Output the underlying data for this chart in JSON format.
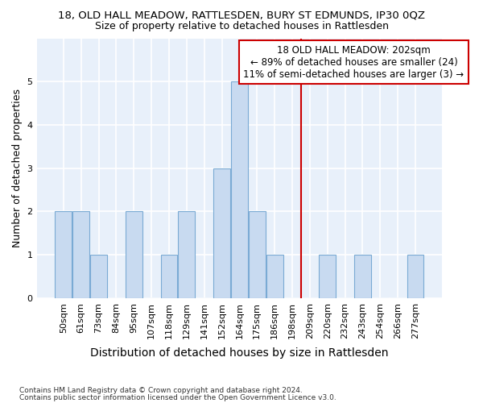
{
  "title": "18, OLD HALL MEADOW, RATTLESDEN, BURY ST EDMUNDS, IP30 0QZ",
  "subtitle": "Size of property relative to detached houses in Rattlesden",
  "xlabel": "Distribution of detached houses by size in Rattlesden",
  "ylabel": "Number of detached properties",
  "categories": [
    "50sqm",
    "61sqm",
    "73sqm",
    "84sqm",
    "95sqm",
    "107sqm",
    "118sqm",
    "129sqm",
    "141sqm",
    "152sqm",
    "164sqm",
    "175sqm",
    "186sqm",
    "198sqm",
    "209sqm",
    "220sqm",
    "232sqm",
    "243sqm",
    "254sqm",
    "266sqm",
    "277sqm"
  ],
  "values": [
    2,
    2,
    1,
    0,
    2,
    0,
    1,
    2,
    0,
    3,
    5,
    2,
    1,
    0,
    0,
    1,
    0,
    1,
    0,
    0,
    1
  ],
  "bar_color": "#c8daf0",
  "bar_edge_color": "#7aaad4",
  "vline_bin_index": 13,
  "vline_color": "#cc0000",
  "annotation_text": "18 OLD HALL MEADOW: 202sqm\n← 89% of detached houses are smaller (24)\n11% of semi-detached houses are larger (3) →",
  "annotation_box_color": "white",
  "annotation_box_edge_color": "#cc0000",
  "ylim": [
    0,
    6
  ],
  "yticks": [
    0,
    1,
    2,
    3,
    4,
    5
  ],
  "footnote1": "Contains HM Land Registry data © Crown copyright and database right 2024.",
  "footnote2": "Contains public sector information licensed under the Open Government Licence v3.0.",
  "background_color": "#ffffff",
  "plot_bg_color": "#e8f0fa",
  "grid_color": "#ffffff",
  "title_fontsize": 9.5,
  "subtitle_fontsize": 9,
  "xlabel_fontsize": 10,
  "ylabel_fontsize": 9,
  "tick_fontsize": 8,
  "annotation_fontsize": 8.5,
  "footnote_fontsize": 6.5
}
